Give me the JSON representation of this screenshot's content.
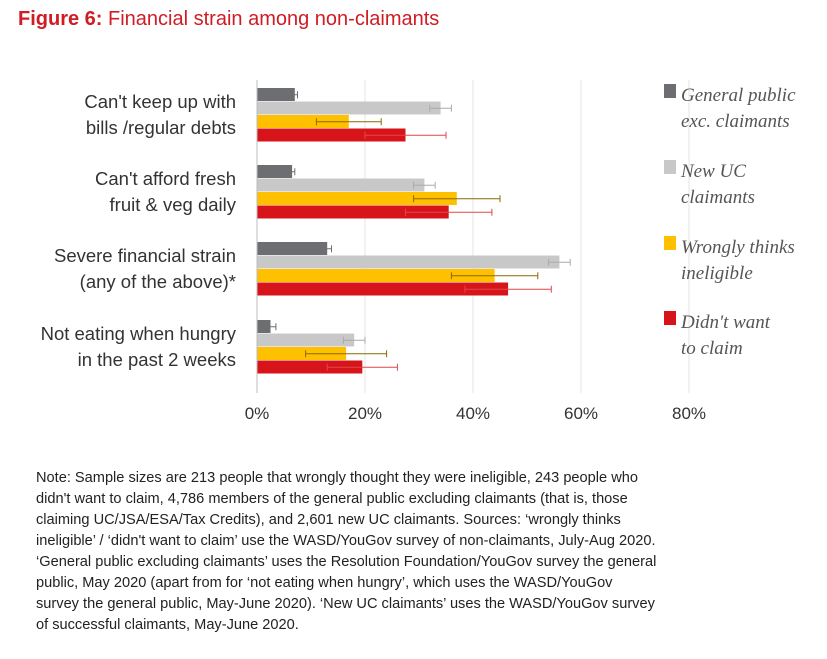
{
  "figure": {
    "number_label": "Figure 6:",
    "title": "Financial strain among non-claimants"
  },
  "chart_data": {
    "type": "bar",
    "orientation": "horizontal",
    "title": "Financial strain among non-claimants",
    "categories": [
      [
        "Can't keep up with",
        "bills /regular debts"
      ],
      [
        "Can't afford fresh",
        "fruit & veg daily"
      ],
      [
        "Severe financial strain",
        "(any of the above)*"
      ],
      [
        "Not eating when hungry",
        "in the past 2 weeks"
      ]
    ],
    "xticks": [
      "0%",
      "20%",
      "40%",
      "60%",
      "80%"
    ],
    "xlim": [
      0,
      80
    ],
    "grid": true,
    "legend_position": "right",
    "series": [
      {
        "name": "General public exc. claimants",
        "legend_lines": [
          "General public",
          "exc. claimants"
        ],
        "color": "#6d6e71",
        "err_color": "#6d6e71",
        "values": [
          7,
          6.5,
          13,
          2.5
        ],
        "err": [
          0.5,
          0.5,
          0.8,
          1.0
        ]
      },
      {
        "name": "New UC claimants",
        "legend_lines": [
          "New UC",
          "claimants"
        ],
        "color": "#c8c8c8",
        "err_color": "#aaaaaa",
        "values": [
          34,
          31,
          56,
          18
        ],
        "err": [
          2,
          2,
          2,
          2
        ]
      },
      {
        "name": "Wrongly thinks ineligible",
        "legend_lines": [
          "Wrongly thinks",
          "ineligible"
        ],
        "color": "#ffc000",
        "err_color": "#8a6a00",
        "values": [
          17,
          37,
          44,
          16.5
        ],
        "err": [
          6,
          8,
          8,
          7.5
        ]
      },
      {
        "name": "Didn't want to claim",
        "legend_lines": [
          "Didn't want",
          "to claim"
        ],
        "color": "#d7141a",
        "err_color": "#e0474c",
        "values": [
          27.5,
          35.5,
          46.5,
          19.5
        ],
        "err": [
          7.5,
          8,
          8,
          6.5
        ]
      }
    ]
  },
  "note_lines": [
    "Note: Sample sizes are 213 people that wrongly thought they were ineligible, 243 people who",
    "didn't want to claim, 4,786 members of the general public excluding claimants (that is, those",
    "claiming UC/JSA/ESA/Tax Credits), and 2,601 new UC claimants. Sources: ‘wrongly thinks",
    "ineligible’ / ‘didn't want to claim’ use the WASD/YouGov survey of non-claimants, July-Aug 2020.",
    "‘General public excluding claimants’ uses the Resolution Foundation/YouGov survey the general",
    "public, May 2020 (apart from for ‘not eating when hungry’, which uses the WASD/YouGov",
    "survey the general public, May-June 2020). ‘New UC claimants’ uses the WASD/YouGov survey",
    "of successful claimants, May-June 2020."
  ]
}
